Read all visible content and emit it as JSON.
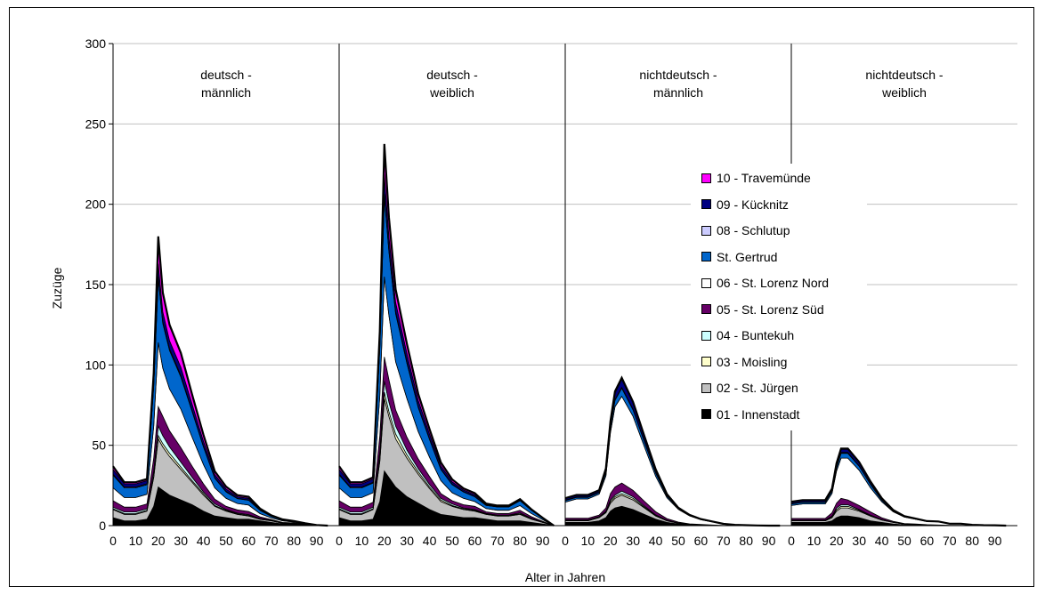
{
  "chart_data": {
    "type": "area",
    "stacked": true,
    "xlabel": "Alter in Jahren",
    "ylabel": "Zuzüge",
    "ylim": [
      0,
      300
    ],
    "yticks": [
      0,
      50,
      100,
      150,
      200,
      250,
      300
    ],
    "xtick_labels": [
      "0",
      "10",
      "20",
      "30",
      "40",
      "50",
      "60",
      "70",
      "80",
      "90"
    ],
    "grid": "horizontal",
    "legend_position": "right-center",
    "panels": [
      {
        "title_line1": "deutsch -",
        "title_line2": "männlich"
      },
      {
        "title_line1": "deutsch -",
        "title_line2": "weiblich"
      },
      {
        "title_line1": "nichtdeutsch -",
        "title_line2": "männlich"
      },
      {
        "title_line1": "nichtdeutsch -",
        "title_line2": "weiblich"
      }
    ],
    "layer_names": [
      "01 - Innenstadt",
      "02 - St. Jürgen",
      "03 - Moisling",
      "04 - Buntekuh",
      "05 - St. Lorenz Süd",
      "06 - St. Lorenz Nord",
      "St. Gertrud",
      "08 - Schlutup",
      "09 - Kücknitz",
      "10 - Travemünde"
    ],
    "layer_colors": [
      "#000000",
      "#c0c0c0",
      "#ffffcc",
      "#ccffff",
      "#660066",
      "#ffffff",
      "#0066cc",
      "#ccccff",
      "#000080",
      "#ff00ff"
    ],
    "x_ages": [
      0,
      5,
      10,
      15,
      18,
      20,
      22,
      25,
      30,
      35,
      40,
      45,
      50,
      55,
      60,
      65,
      70,
      75,
      80,
      85,
      90,
      95
    ],
    "layer_values": [
      [
        [
          5,
          3,
          3,
          4,
          12,
          24,
          22,
          19,
          16,
          13,
          9,
          6,
          5,
          4,
          4,
          3,
          2,
          1,
          1,
          0.5,
          0.2,
          0
        ],
        [
          5,
          4,
          4,
          5,
          18,
          30,
          27,
          24,
          19,
          14,
          10,
          6,
          4,
          3,
          2,
          1,
          1,
          0.5,
          0.5,
          0.2,
          0,
          0
        ],
        [
          0.5,
          0.5,
          0.5,
          0.5,
          1,
          2,
          2,
          2,
          1.5,
          1,
          1,
          0.5,
          0.5,
          0.3,
          0.3,
          0.2,
          0.1,
          0.1,
          0,
          0,
          0,
          0
        ],
        [
          1,
          1,
          1,
          1,
          3,
          6,
          5,
          4,
          3,
          2,
          1,
          1,
          0.5,
          0.5,
          0.5,
          0.3,
          0.2,
          0.1,
          0,
          0,
          0,
          0
        ],
        [
          4,
          3,
          3,
          3,
          8,
          12,
          12,
          10,
          9,
          7,
          5,
          3,
          2,
          2,
          2,
          1,
          0.5,
          0.3,
          0.2,
          0.1,
          0,
          0
        ],
        [
          8,
          6,
          6,
          6,
          20,
          40,
          30,
          26,
          24,
          18,
          12,
          7,
          5,
          4,
          4,
          2,
          1,
          1,
          0.5,
          0.3,
          0.1,
          0
        ],
        [
          8,
          6,
          6,
          6,
          25,
          40,
          28,
          24,
          20,
          16,
          11,
          6,
          4,
          3,
          3,
          2,
          1,
          0.5,
          0.5,
          0.2,
          0.1,
          0
        ],
        [
          0.5,
          0.5,
          0.5,
          0.5,
          1,
          1,
          1,
          1,
          1,
          0.5,
          0.5,
          0.3,
          0.3,
          0.2,
          0.2,
          0.1,
          0,
          0,
          0,
          0,
          0,
          0
        ],
        [
          3,
          2,
          2,
          2,
          4,
          8,
          6,
          5,
          5,
          4,
          3,
          2,
          1.5,
          1,
          1,
          0.5,
          0.3,
          0.2,
          0.1,
          0.1,
          0,
          0
        ],
        [
          2,
          1,
          1,
          1,
          3,
          17,
          12,
          10,
          9,
          6,
          4,
          2,
          1.5,
          1,
          1,
          0.5,
          0.3,
          0.2,
          0.1,
          0.1,
          0,
          0
        ]
      ],
      [
        [
          5,
          3,
          3,
          4,
          15,
          34,
          30,
          24,
          18,
          14,
          10,
          7,
          6,
          5,
          5,
          4,
          3,
          3,
          3,
          2,
          1,
          0
        ],
        [
          5,
          4,
          4,
          6,
          25,
          45,
          38,
          30,
          24,
          18,
          13,
          8,
          6,
          5,
          4,
          3,
          3,
          3,
          4,
          2,
          1,
          0
        ],
        [
          0.5,
          0.5,
          0.5,
          0.5,
          2,
          4,
          3,
          3,
          2,
          1.5,
          1,
          1,
          0.5,
          0.5,
          0.5,
          0.3,
          0.3,
          0.3,
          0.5,
          0.3,
          0.1,
          0
        ],
        [
          1,
          1,
          1,
          1,
          4,
          7,
          6,
          5,
          3,
          2,
          1.5,
          1,
          1,
          0.5,
          0.5,
          0.3,
          0.3,
          0.3,
          0.5,
          0.3,
          0.1,
          0
        ],
        [
          4,
          3,
          3,
          3,
          10,
          15,
          14,
          10,
          8,
          6,
          5,
          3,
          2,
          2,
          2,
          1,
          1,
          1,
          1.5,
          1,
          0.5,
          0
        ],
        [
          8,
          6,
          6,
          6,
          25,
          50,
          40,
          30,
          24,
          17,
          12,
          8,
          5,
          4,
          3,
          2,
          2,
          2,
          3,
          2,
          1,
          0
        ],
        [
          8,
          6,
          6,
          6,
          30,
          50,
          40,
          30,
          22,
          15,
          11,
          7,
          5,
          4,
          3,
          2,
          2,
          2,
          3,
          2,
          1,
          0
        ],
        [
          0.5,
          0.5,
          0.5,
          0.5,
          1,
          1.5,
          1,
          1,
          1,
          0.5,
          0.5,
          0.3,
          0.3,
          0.2,
          0.2,
          0.1,
          0.1,
          0.1,
          0.2,
          0.1,
          0,
          0
        ],
        [
          3,
          2,
          2,
          2,
          5,
          12,
          8,
          6,
          5,
          4,
          3,
          2,
          1.5,
          1,
          1,
          0.5,
          0.5,
          0.5,
          0.5,
          0.3,
          0.1,
          0
        ],
        [
          2,
          1,
          1,
          1,
          4,
          19,
          12,
          8,
          6,
          4,
          3,
          2,
          1.5,
          1,
          1,
          0.5,
          0.3,
          0.3,
          0.3,
          0.2,
          0.1,
          0
        ]
      ],
      [
        [
          2,
          2,
          2,
          3,
          5,
          9,
          11,
          12,
          10,
          7,
          4,
          2,
          1,
          0.5,
          0.3,
          0.2,
          0.1,
          0,
          0,
          0,
          0,
          0
        ],
        [
          1,
          1,
          1,
          2,
          3,
          5,
          6,
          7,
          6,
          4,
          2,
          1,
          0.5,
          0.3,
          0.2,
          0.1,
          0,
          0,
          0,
          0,
          0,
          0
        ],
        [
          0.3,
          0.3,
          0.3,
          0.3,
          0.5,
          1,
          1,
          1,
          1,
          0.5,
          0.3,
          0.2,
          0.1,
          0,
          0,
          0,
          0,
          0,
          0,
          0,
          0,
          0
        ],
        [
          0.3,
          0.3,
          0.3,
          0.3,
          0.5,
          1,
          1,
          1.5,
          1,
          0.7,
          0.4,
          0.2,
          0.1,
          0,
          0,
          0,
          0,
          0,
          0,
          0,
          0,
          0
        ],
        [
          1,
          1,
          1,
          1,
          2,
          4,
          5,
          5,
          4,
          3,
          2,
          1,
          0.5,
          0.3,
          0.2,
          0.1,
          0,
          0,
          0,
          0,
          0,
          0
        ],
        [
          10,
          12,
          12,
          13,
          20,
          38,
          50,
          54,
          46,
          34,
          22,
          13,
          8,
          5,
          3,
          2,
          1,
          0.5,
          0.3,
          0.1,
          0,
          0
        ],
        [
          1,
          1,
          1,
          1,
          2,
          3,
          4,
          5,
          4,
          3,
          2,
          1,
          0.5,
          0.3,
          0.2,
          0.1,
          0,
          0,
          0,
          0,
          0,
          0
        ],
        [
          0.3,
          0.3,
          0.3,
          0.3,
          0.3,
          0.5,
          0.5,
          0.5,
          0.5,
          0.3,
          0.2,
          0.1,
          0,
          0,
          0,
          0,
          0,
          0,
          0,
          0,
          0,
          0
        ],
        [
          1,
          1,
          1,
          1,
          2,
          3,
          4,
          5,
          4,
          3,
          2,
          1,
          0.5,
          0.3,
          0.2,
          0.1,
          0,
          0,
          0,
          0,
          0,
          0
        ],
        [
          0.2,
          0.2,
          0.2,
          0.2,
          0.3,
          0.5,
          1,
          1,
          0.5,
          0.3,
          0.2,
          0.1,
          0,
          0,
          0,
          0,
          0,
          0,
          0,
          0,
          0,
          0
        ]
      ],
      [
        [
          2,
          2,
          2,
          2,
          3,
          5,
          6,
          6,
          5,
          3,
          2,
          1,
          0.5,
          0.5,
          0.3,
          0.2,
          0.1,
          0.1,
          0,
          0,
          0,
          0
        ],
        [
          1,
          1,
          1,
          1,
          2,
          4,
          5,
          5,
          4,
          3,
          1.5,
          1,
          0.5,
          0.3,
          0.2,
          0.1,
          0.1,
          0.1,
          0,
          0,
          0,
          0
        ],
        [
          0.2,
          0.2,
          0.2,
          0.2,
          0.5,
          1,
          1,
          1,
          0.5,
          0.3,
          0.2,
          0.1,
          0,
          0,
          0,
          0,
          0,
          0,
          0,
          0,
          0,
          0
        ],
        [
          0.3,
          0.3,
          0.3,
          0.3,
          0.5,
          1,
          1,
          1,
          0.5,
          0.3,
          0.2,
          0.1,
          0,
          0,
          0,
          0,
          0,
          0,
          0,
          0,
          0,
          0
        ],
        [
          1,
          1,
          1,
          1,
          2,
          3,
          4,
          3,
          2.5,
          2,
          1,
          0.5,
          0.3,
          0.2,
          0.1,
          0.1,
          0,
          0,
          0,
          0,
          0,
          0
        ],
        [
          8,
          9,
          9,
          9,
          12,
          20,
          25,
          26,
          22,
          15,
          10,
          6,
          4,
          3,
          2,
          2,
          1,
          1,
          0.5,
          0.3,
          0.2,
          0
        ],
        [
          1,
          1,
          1,
          1,
          1.5,
          2,
          3,
          3,
          2.5,
          2,
          1,
          0.5,
          0.3,
          0.2,
          0.1,
          0.1,
          0,
          0,
          0,
          0,
          0,
          0
        ],
        [
          0.2,
          0.2,
          0.2,
          0.2,
          0.2,
          0.3,
          0.5,
          0.5,
          0.3,
          0.2,
          0.1,
          0,
          0,
          0,
          0,
          0,
          0,
          0,
          0,
          0,
          0,
          0
        ],
        [
          1,
          1,
          1,
          1,
          1,
          2,
          2,
          2,
          2,
          1.5,
          1,
          0.5,
          0.3,
          0.2,
          0.1,
          0.1,
          0,
          0,
          0,
          0,
          0,
          0
        ],
        [
          0.2,
          0.2,
          0.2,
          0.2,
          0.3,
          0.5,
          0.5,
          0.5,
          0.3,
          0.2,
          0.1,
          0.1,
          0,
          0,
          0,
          0,
          0,
          0,
          0,
          0,
          0,
          0
        ]
      ]
    ]
  }
}
